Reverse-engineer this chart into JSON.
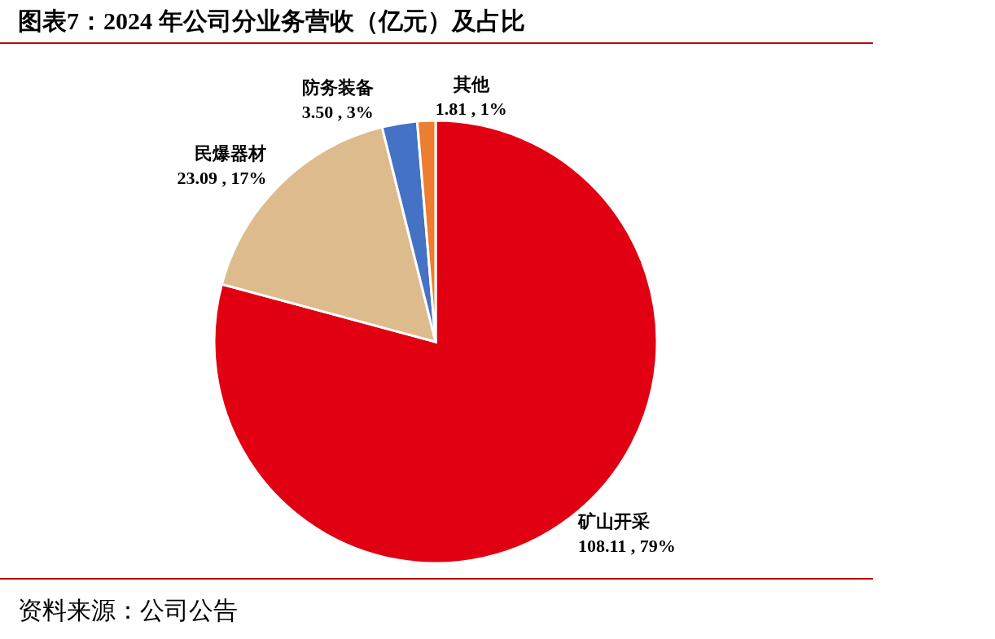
{
  "chart_data": {
    "type": "pie",
    "title": "图表7：2024 年公司分业务营收（亿元）及占比",
    "categories": [
      "矿山开采",
      "民爆器材",
      "防务装备",
      "其他"
    ],
    "values": [
      108.11,
      23.09,
      3.5,
      1.81
    ],
    "value_labels": [
      "108.11 , 79%",
      "23.09 , 17%",
      "3.50 , 3%",
      "1.81 , 1%"
    ],
    "colors": [
      "#e00012",
      "#debb8c",
      "#4472c4",
      "#ed7d31"
    ],
    "annotations": [
      "资料来源：公司公告"
    ]
  }
}
